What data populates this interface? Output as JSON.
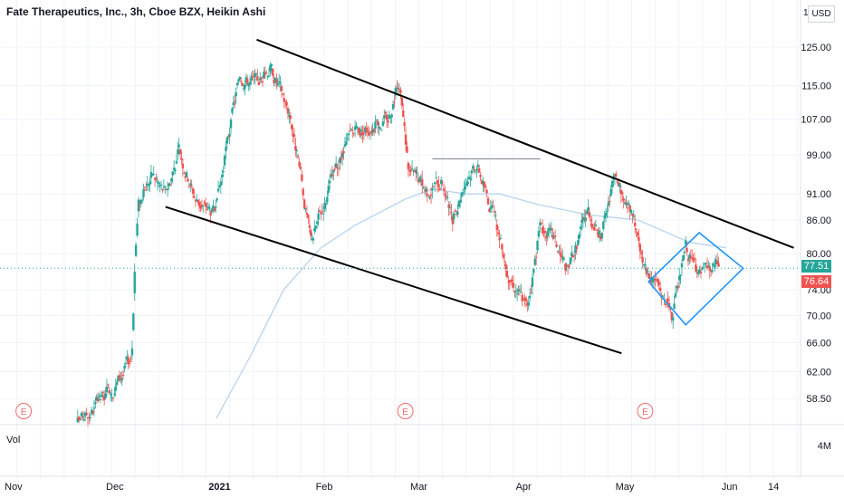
{
  "header": {
    "title": "Fate Therapeutics, Inc., 3h, Cboe BZX, Heikin Ashi",
    "unit": "USD",
    "scale_mark": "1"
  },
  "volume_pane": {
    "label": "Vol",
    "tick": "4M"
  },
  "price_tags": {
    "last": "77.51",
    "prev": "76.64",
    "last_color": "#26a69a",
    "prev_color": "#ef5350"
  },
  "colors": {
    "up": "#26a69a",
    "down": "#ef5350",
    "line": "#000000",
    "pattern": "#2196f3",
    "ma": "#b9d4ee",
    "grid": "#f0f3fa",
    "earnings": "#f06a6a"
  },
  "chart_data": {
    "type": "candlestick",
    "y_scale": "log",
    "ylim": [
      55.5,
      131
    ],
    "y_ticks": [
      125,
      115,
      107,
      99,
      91,
      86,
      80,
      74,
      70,
      66,
      62,
      58.5
    ],
    "y_tick_labels": [
      "125.00",
      "115.00",
      "107.00",
      "99.00",
      "91.00",
      "86.00",
      "80.00",
      "74.00",
      "70.00",
      "66.00",
      "62.00",
      "58.50"
    ],
    "xlim": [
      "2020-10-28",
      "2021-06-22"
    ],
    "x_ticks": [
      {
        "date": "2020-11-01",
        "label": "Nov",
        "bold": false
      },
      {
        "date": "2020-12-01",
        "label": "Dec",
        "bold": false
      },
      {
        "date": "2021-01-01",
        "label": "2021",
        "bold": true
      },
      {
        "date": "2021-02-01",
        "label": "Feb",
        "bold": false
      },
      {
        "date": "2021-03-01",
        "label": "Mar",
        "bold": false
      },
      {
        "date": "2021-04-01",
        "label": "Apr",
        "bold": false
      },
      {
        "date": "2021-05-01",
        "label": "May",
        "bold": false
      },
      {
        "date": "2021-06-01",
        "label": "Jun",
        "bold": false
      },
      {
        "date": "2021-06-14",
        "label": "14",
        "bold": false
      }
    ],
    "price_path": [
      [
        "2020-11-20",
        55.5
      ],
      [
        "2020-11-28",
        58.5
      ],
      [
        "2020-12-03",
        61.5
      ],
      [
        "2020-12-06",
        64
      ],
      [
        "2020-12-07",
        80
      ],
      [
        "2020-12-08",
        89
      ],
      [
        "2020-12-12",
        95
      ],
      [
        "2020-12-16",
        91
      ],
      [
        "2020-12-20",
        100
      ],
      [
        "2020-12-25",
        90
      ],
      [
        "2020-12-31",
        87
      ],
      [
        "2021-01-03",
        100
      ],
      [
        "2021-01-07",
        118
      ],
      [
        "2021-01-12",
        115
      ],
      [
        "2021-01-16",
        120
      ],
      [
        "2021-01-22",
        108
      ],
      [
        "2021-01-28",
        82
      ],
      [
        "2021-02-03",
        93
      ],
      [
        "2021-02-09",
        103
      ],
      [
        "2021-02-15",
        106
      ],
      [
        "2021-02-20",
        107
      ],
      [
        "2021-02-23",
        117
      ],
      [
        "2021-02-26",
        96
      ],
      [
        "2021-03-03",
        92
      ],
      [
        "2021-03-08",
        94
      ],
      [
        "2021-03-11",
        85
      ],
      [
        "2021-03-14",
        93
      ],
      [
        "2021-03-18",
        98
      ],
      [
        "2021-03-22",
        89
      ],
      [
        "2021-03-27",
        78
      ],
      [
        "2021-04-02",
        71
      ],
      [
        "2021-04-06",
        85
      ],
      [
        "2021-04-10",
        82
      ],
      [
        "2021-04-14",
        77
      ],
      [
        "2021-04-20",
        88
      ],
      [
        "2021-04-24",
        83
      ],
      [
        "2021-04-28",
        94
      ],
      [
        "2021-05-03",
        87
      ],
      [
        "2021-05-07",
        77
      ],
      [
        "2021-05-11",
        75
      ],
      [
        "2021-05-15",
        69
      ],
      [
        "2021-05-19",
        81
      ],
      [
        "2021-05-23",
        76
      ],
      [
        "2021-05-29",
        78
      ]
    ],
    "moving_average": [
      [
        "2020-12-31",
        56
      ],
      [
        "2021-01-10",
        64
      ],
      [
        "2021-01-20",
        74
      ],
      [
        "2021-01-31",
        81
      ],
      [
        "2021-02-10",
        85
      ],
      [
        "2021-02-25",
        90
      ],
      [
        "2021-03-05",
        92
      ],
      [
        "2021-03-15",
        91
      ],
      [
        "2021-03-25",
        91
      ],
      [
        "2021-04-05",
        89
      ],
      [
        "2021-04-20",
        87
      ],
      [
        "2021-05-05",
        86
      ],
      [
        "2021-05-20",
        82
      ],
      [
        "2021-05-31",
        81
      ]
    ],
    "annotations": {
      "channel_upper": [
        [
          "2021-01-12",
          127
        ],
        [
          "2021-06-20",
          81
        ]
      ],
      "channel_lower": [
        [
          "2020-12-16",
          88.5
        ],
        [
          "2021-04-30",
          64.5
        ]
      ],
      "resistance": [
        [
          "2021-03-05",
          98.2
        ],
        [
          "2021-04-06",
          98.2
        ]
      ],
      "diamond": [
        [
          "2021-05-08",
          75.3
        ],
        [
          "2021-05-23",
          83.7
        ],
        [
          "2021-06-05",
          77.5
        ],
        [
          "2021-05-19",
          68.6
        ]
      ]
    },
    "earnings_markers": [
      {
        "date": "2020-11-04",
        "label": "E"
      },
      {
        "date": "2021-02-25",
        "label": "E"
      },
      {
        "date": "2021-05-07",
        "label": "E"
      }
    ]
  }
}
